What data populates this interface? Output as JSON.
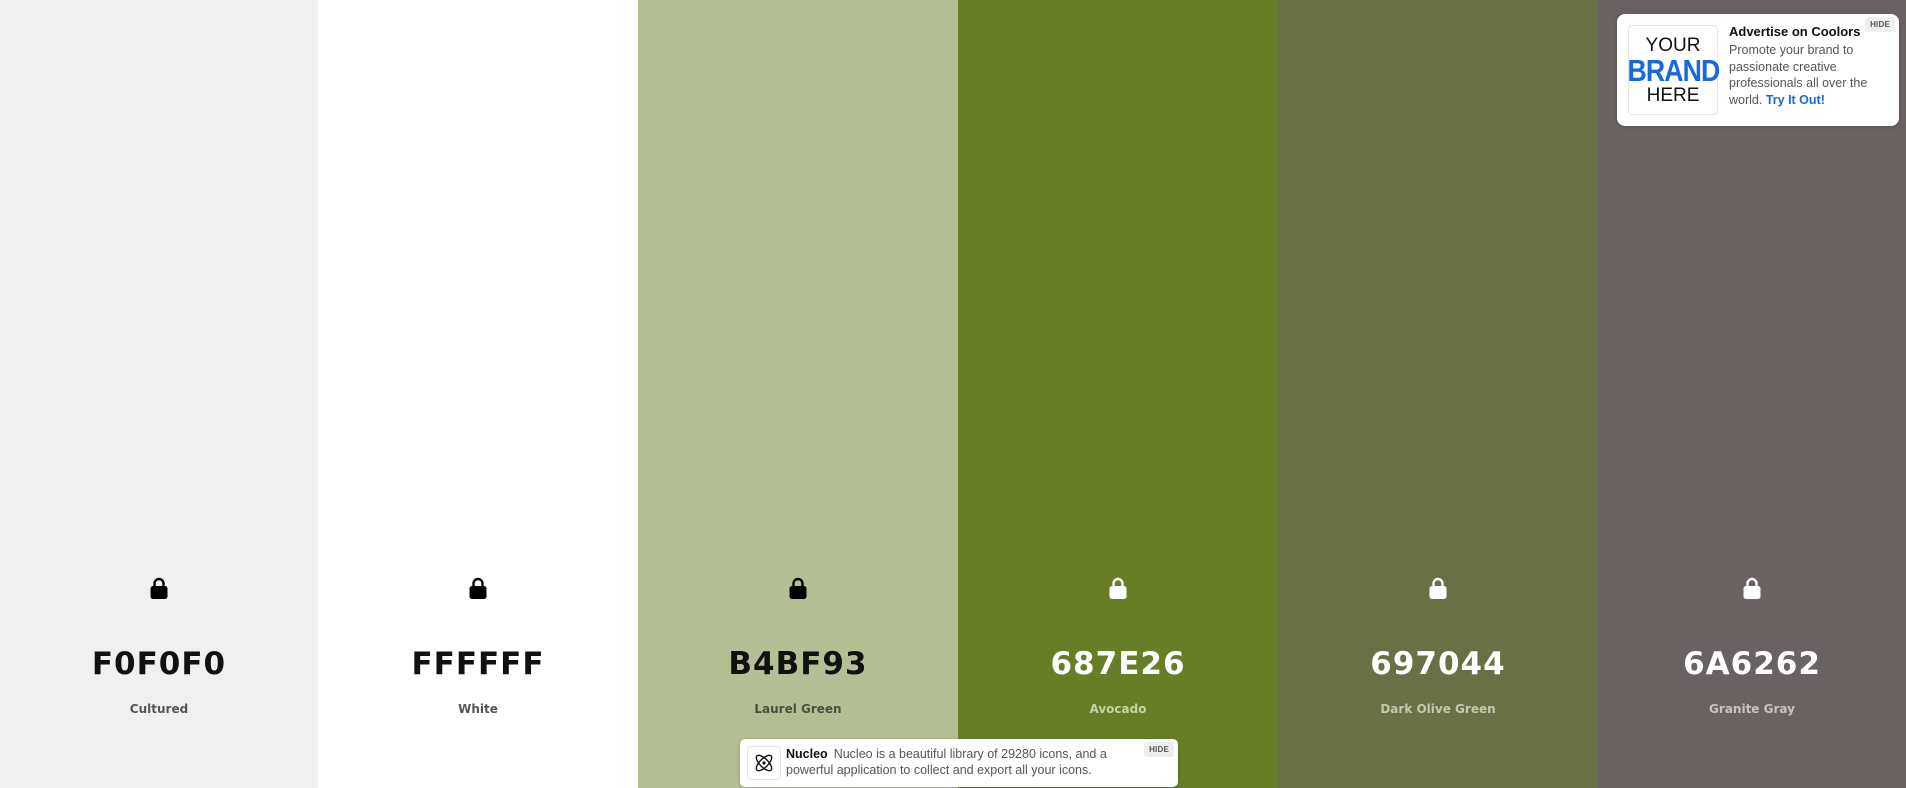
{
  "palette": {
    "swatches": [
      {
        "hex": "F0F0F0",
        "name": "Cultured",
        "bg": "#F0F0F0",
        "text_color": "#111111",
        "name_color": "#555555",
        "lock_color": "#000000"
      },
      {
        "hex": "FFFFFF",
        "name": "White",
        "bg": "#FFFFFF",
        "text_color": "#111111",
        "name_color": "#555555",
        "lock_color": "#000000"
      },
      {
        "hex": "B4BF93",
        "name": "Laurel Green",
        "bg": "#B4BF93",
        "text_color": "#111111",
        "name_color": "#4a4f3c",
        "lock_color": "#000000"
      },
      {
        "hex": "687E26",
        "name": "Avocado",
        "bg": "#687E26",
        "text_color": "#FFFFFF",
        "name_color": "#c9d3a8",
        "lock_color": "#FFFFFF"
      },
      {
        "hex": "697044",
        "name": "Dark Olive Green",
        "bg": "#697044",
        "text_color": "#FFFFFF",
        "name_color": "#c6caae",
        "lock_color": "#FFFFFF"
      },
      {
        "hex": "6A6262",
        "name": "Granite Gray",
        "bg": "#6A6262",
        "text_color": "#FFFFFF",
        "name_color": "#c8c3c3",
        "lock_color": "#FFFFFF"
      }
    ]
  },
  "ad": {
    "logo": {
      "line1": "YOUR",
      "line2": "BRAND",
      "line3": "HERE"
    },
    "title": "Advertise on Coolors",
    "text": "Promote your brand to passionate creative professionals all over the world.",
    "link": "Try It Out!",
    "hide": "HIDE"
  },
  "banner": {
    "icon": "atom-icon",
    "brand": "Nucleo",
    "text": "Nucleo is a beautiful library of 29280 icons, and a powerful application to collect and export all your icons.",
    "hide": "HIDE"
  }
}
